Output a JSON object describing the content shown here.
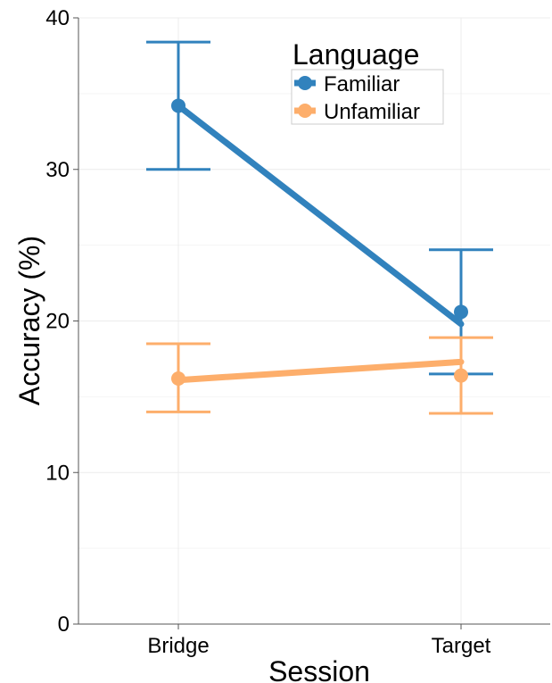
{
  "chart_data": {
    "type": "line",
    "xlabel": "Session",
    "ylabel": "Accuracy (%)",
    "categories": [
      "Bridge",
      "Target"
    ],
    "ylim": [
      0,
      40
    ],
    "yticks": [
      "0",
      "10",
      "20",
      "30",
      "40"
    ],
    "grid": true,
    "legend": {
      "title": "Language",
      "placement": "top-right"
    },
    "series": [
      {
        "name": "Familiar",
        "color": "#3182bd",
        "points": [
          {
            "x": "Bridge",
            "mean": 34.2,
            "fit": 34.2,
            "low": 30.0,
            "high": 38.4
          },
          {
            "x": "Target",
            "mean": 20.6,
            "fit": 19.8,
            "low": 16.5,
            "high": 24.7
          }
        ]
      },
      {
        "name": "Unfamiliar",
        "color": "#fdae6b",
        "points": [
          {
            "x": "Bridge",
            "mean": 16.2,
            "fit": 16.1,
            "low": 14.0,
            "high": 18.5
          },
          {
            "x": "Target",
            "mean": 16.4,
            "fit": 17.3,
            "low": 13.9,
            "high": 18.9
          }
        ]
      }
    ]
  }
}
